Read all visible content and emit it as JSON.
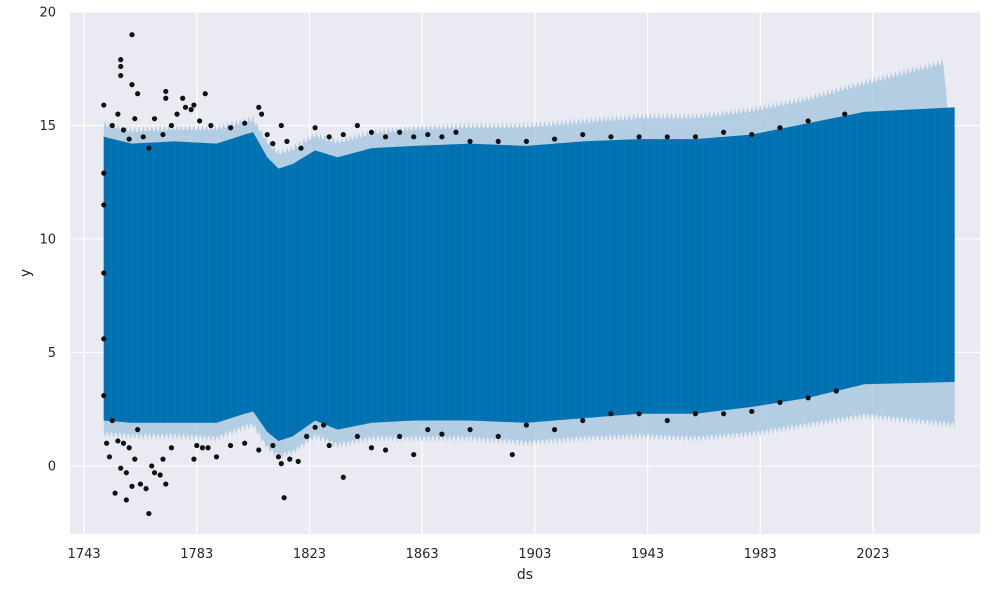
{
  "chart_data": {
    "type": "scatter",
    "xlabel": "ds",
    "ylabel": "y",
    "xlim": [
      1738,
      2061
    ],
    "ylim": [
      -3,
      20
    ],
    "xticks": [
      1743,
      1783,
      1823,
      1863,
      1903,
      1943,
      1983,
      2023
    ],
    "yticks": [
      0,
      5,
      10,
      15,
      20
    ],
    "grid": true,
    "colors": {
      "background": "#eaeaf2",
      "grid": "#ffffff",
      "forecast": "#0072b2",
      "uncertainty": "#a9c8e0",
      "observed": "#111111"
    },
    "series": [
      {
        "kind": "observed",
        "x_range": [
          1750,
          2015
        ],
        "points": [
          [
            1750,
            15.9
          ],
          [
            1750,
            12.9
          ],
          [
            1750,
            11.5
          ],
          [
            1750,
            8.5
          ],
          [
            1750,
            5.6
          ],
          [
            1750,
            3.1
          ],
          [
            1751,
            1.0
          ],
          [
            1752,
            0.4
          ],
          [
            1753,
            2.0
          ],
          [
            1754,
            -1.2
          ],
          [
            1755,
            1.1
          ],
          [
            1756,
            -0.1
          ],
          [
            1757,
            1.0
          ],
          [
            1758,
            -1.5
          ],
          [
            1758,
            -0.3
          ],
          [
            1759,
            0.8
          ],
          [
            1760,
            -0.9
          ],
          [
            1761,
            0.3
          ],
          [
            1762,
            1.6
          ],
          [
            1763,
            -0.8
          ],
          [
            1765,
            -1.0
          ],
          [
            1766,
            -2.1
          ],
          [
            1767,
            0.0
          ],
          [
            1768,
            -0.3
          ],
          [
            1770,
            -0.4
          ],
          [
            1771,
            0.3
          ],
          [
            1772,
            -0.8
          ],
          [
            1774,
            0.8
          ],
          [
            1782,
            0.3
          ],
          [
            1783,
            0.9
          ],
          [
            1785,
            0.8
          ],
          [
            1787,
            0.8
          ],
          [
            1790,
            0.4
          ],
          [
            1795,
            0.9
          ],
          [
            1800,
            1.0
          ],
          [
            1805,
            0.7
          ],
          [
            1810,
            0.9
          ],
          [
            1812,
            0.4
          ],
          [
            1813,
            0.1
          ],
          [
            1814,
            -1.4
          ],
          [
            1816,
            0.3
          ],
          [
            1819,
            0.2
          ],
          [
            1822,
            1.3
          ],
          [
            1825,
            1.7
          ],
          [
            1828,
            1.8
          ],
          [
            1830,
            0.9
          ],
          [
            1835,
            -0.5
          ],
          [
            1840,
            1.3
          ],
          [
            1845,
            0.8
          ],
          [
            1850,
            0.7
          ],
          [
            1855,
            1.3
          ],
          [
            1860,
            0.5
          ],
          [
            1865,
            1.6
          ],
          [
            1870,
            1.4
          ],
          [
            1880,
            1.6
          ],
          [
            1890,
            1.3
          ],
          [
            1895,
            0.5
          ],
          [
            1900,
            1.8
          ],
          [
            1910,
            1.6
          ],
          [
            1920,
            2.0
          ],
          [
            1930,
            2.3
          ],
          [
            1940,
            2.3
          ],
          [
            1950,
            2.0
          ],
          [
            1960,
            2.3
          ],
          [
            1970,
            2.3
          ],
          [
            1980,
            2.4
          ],
          [
            1990,
            2.8
          ],
          [
            2000,
            3.0
          ],
          [
            2010,
            3.3
          ],
          [
            1753,
            15.0
          ],
          [
            1755,
            15.5
          ],
          [
            1756,
            17.9
          ],
          [
            1756,
            17.6
          ],
          [
            1756,
            17.2
          ],
          [
            1757,
            14.8
          ],
          [
            1759,
            14.4
          ],
          [
            1760,
            19.0
          ],
          [
            1760,
            16.8
          ],
          [
            1761,
            15.3
          ],
          [
            1762,
            16.4
          ],
          [
            1764,
            14.5
          ],
          [
            1766,
            14.0
          ],
          [
            1768,
            15.3
          ],
          [
            1771,
            14.6
          ],
          [
            1772,
            16.5
          ],
          [
            1772,
            16.2
          ],
          [
            1774,
            15.0
          ],
          [
            1776,
            15.5
          ],
          [
            1778,
            16.2
          ],
          [
            1779,
            15.8
          ],
          [
            1781,
            15.7
          ],
          [
            1782,
            15.9
          ],
          [
            1784,
            15.2
          ],
          [
            1786,
            16.4
          ],
          [
            1788,
            15.0
          ],
          [
            1795,
            14.9
          ],
          [
            1800,
            15.1
          ],
          [
            1805,
            15.8
          ],
          [
            1806,
            15.5
          ],
          [
            1808,
            14.6
          ],
          [
            1810,
            14.2
          ],
          [
            1813,
            15.0
          ],
          [
            1815,
            14.3
          ],
          [
            1820,
            14.0
          ],
          [
            1825,
            14.9
          ],
          [
            1830,
            14.5
          ],
          [
            1835,
            14.6
          ],
          [
            1840,
            15.0
          ],
          [
            1845,
            14.7
          ],
          [
            1850,
            14.5
          ],
          [
            1855,
            14.7
          ],
          [
            1860,
            14.5
          ],
          [
            1865,
            14.6
          ],
          [
            1870,
            14.5
          ],
          [
            1875,
            14.7
          ],
          [
            1880,
            14.3
          ],
          [
            1890,
            14.3
          ],
          [
            1900,
            14.3
          ],
          [
            1910,
            14.4
          ],
          [
            1920,
            14.6
          ],
          [
            1930,
            14.5
          ],
          [
            1940,
            14.5
          ],
          [
            1950,
            14.5
          ],
          [
            1960,
            14.5
          ],
          [
            1970,
            14.7
          ],
          [
            1980,
            14.6
          ],
          [
            1990,
            14.9
          ],
          [
            2000,
            15.2
          ],
          [
            2013,
            15.5
          ]
        ]
      },
      {
        "kind": "forecast",
        "x_range": [
          1750,
          2052
        ],
        "yhat_upper_envelope": [
          [
            1750,
            14.5
          ],
          [
            1760,
            14.2
          ],
          [
            1775,
            14.3
          ],
          [
            1790,
            14.2
          ],
          [
            1800,
            14.6
          ],
          [
            1803,
            14.7
          ],
          [
            1808,
            13.6
          ],
          [
            1812,
            13.1
          ],
          [
            1817,
            13.3
          ],
          [
            1825,
            13.9
          ],
          [
            1833,
            13.6
          ],
          [
            1845,
            14.0
          ],
          [
            1860,
            14.1
          ],
          [
            1880,
            14.2
          ],
          [
            1900,
            14.1
          ],
          [
            1920,
            14.3
          ],
          [
            1940,
            14.4
          ],
          [
            1960,
            14.4
          ],
          [
            1980,
            14.6
          ],
          [
            2000,
            15.1
          ],
          [
            2020,
            15.6
          ],
          [
            2052,
            15.8
          ]
        ],
        "yhat_lower_envelope": [
          [
            1750,
            2.0
          ],
          [
            1760,
            1.9
          ],
          [
            1775,
            1.9
          ],
          [
            1790,
            1.9
          ],
          [
            1800,
            2.3
          ],
          [
            1803,
            2.4
          ],
          [
            1808,
            1.5
          ],
          [
            1812,
            1.1
          ],
          [
            1817,
            1.3
          ],
          [
            1825,
            2.0
          ],
          [
            1833,
            1.6
          ],
          [
            1845,
            1.9
          ],
          [
            1860,
            2.0
          ],
          [
            1880,
            2.0
          ],
          [
            1900,
            1.9
          ],
          [
            1920,
            2.1
          ],
          [
            1940,
            2.3
          ],
          [
            1960,
            2.3
          ],
          [
            1980,
            2.6
          ],
          [
            2000,
            3.0
          ],
          [
            2020,
            3.6
          ],
          [
            2052,
            3.7
          ]
        ]
      },
      {
        "kind": "uncertainty",
        "x_range": [
          1750,
          2052
        ],
        "upper_envelope": [
          [
            1750,
            15.0
          ],
          [
            1760,
            14.7
          ],
          [
            1775,
            14.8
          ],
          [
            1790,
            14.8
          ],
          [
            1800,
            15.1
          ],
          [
            1803,
            15.2
          ],
          [
            1808,
            14.2
          ],
          [
            1812,
            13.7
          ],
          [
            1817,
            13.9
          ],
          [
            1825,
            14.5
          ],
          [
            1833,
            14.2
          ],
          [
            1845,
            14.6
          ],
          [
            1860,
            14.8
          ],
          [
            1880,
            14.9
          ],
          [
            1900,
            14.9
          ],
          [
            1920,
            15.1
          ],
          [
            1940,
            15.3
          ],
          [
            1960,
            15.3
          ],
          [
            1980,
            15.6
          ],
          [
            2000,
            16.1
          ],
          [
            2020,
            16.8
          ],
          [
            2048,
            17.7
          ],
          [
            2052,
            12.0
          ]
        ],
        "lower_envelope": [
          [
            1750,
            1.5
          ],
          [
            1760,
            1.4
          ],
          [
            1775,
            1.4
          ],
          [
            1790,
            1.3
          ],
          [
            1800,
            1.8
          ],
          [
            1803,
            1.9
          ],
          [
            1808,
            0.9
          ],
          [
            1812,
            0.5
          ],
          [
            1817,
            0.7
          ],
          [
            1825,
            1.4
          ],
          [
            1833,
            1.0
          ],
          [
            1845,
            1.3
          ],
          [
            1860,
            1.3
          ],
          [
            1880,
            1.3
          ],
          [
            1900,
            1.1
          ],
          [
            1920,
            1.3
          ],
          [
            1940,
            1.4
          ],
          [
            1960,
            1.3
          ],
          [
            1980,
            1.5
          ],
          [
            2000,
            1.9
          ],
          [
            2020,
            2.3
          ],
          [
            2052,
            1.9
          ]
        ]
      }
    ]
  }
}
